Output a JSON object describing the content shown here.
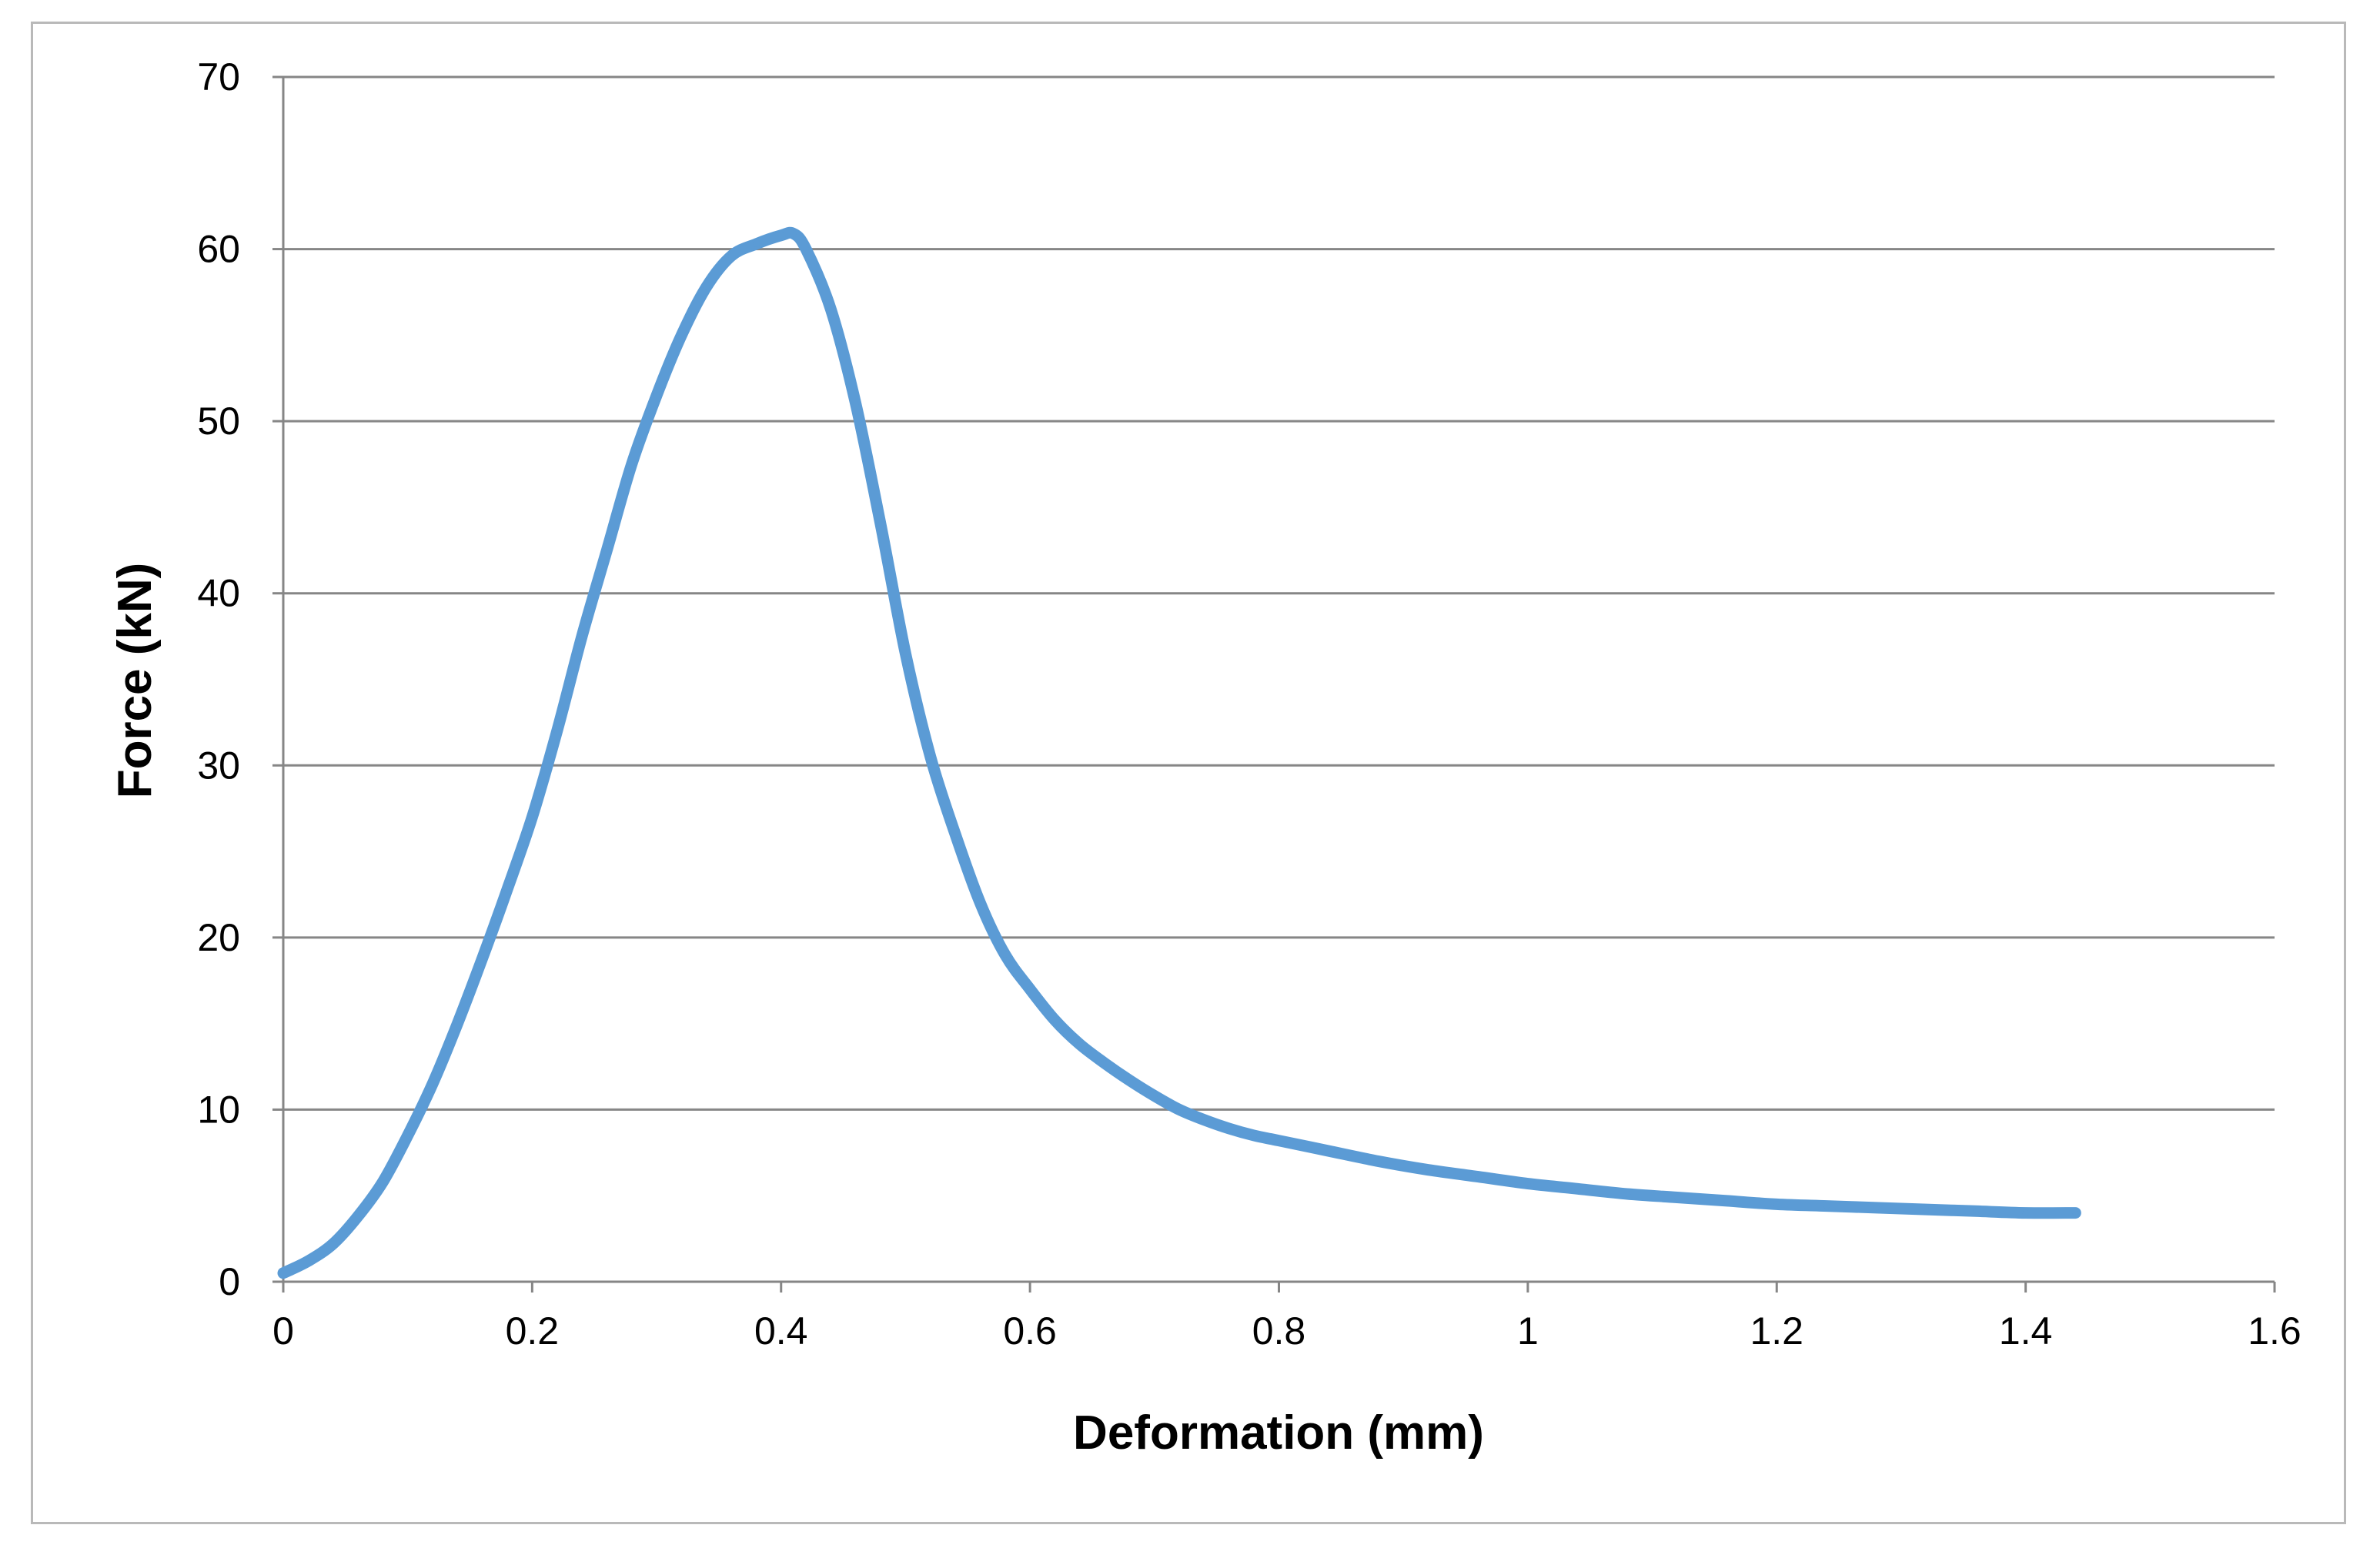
{
  "chart_data": {
    "type": "line",
    "title": "",
    "xlabel": "Deformation (mm)",
    "ylabel": "Force  (kN)",
    "xlim": [
      0,
      1.6
    ],
    "ylim": [
      0,
      70
    ],
    "x_ticks": [
      "0",
      "0.2",
      "0.4",
      "0.6",
      "0.8",
      "1",
      "1.2",
      "1.4",
      "1.6"
    ],
    "y_ticks": [
      "0",
      "10",
      "20",
      "30",
      "40",
      "50",
      "60",
      "70"
    ],
    "grid": "horizontal",
    "legend": "none",
    "series": [
      {
        "color": "#5b9bd5",
        "x": [
          0,
          0.02,
          0.04,
          0.06,
          0.08,
          0.1,
          0.12,
          0.14,
          0.16,
          0.18,
          0.2,
          0.22,
          0.24,
          0.26,
          0.28,
          0.3,
          0.32,
          0.34,
          0.36,
          0.38,
          0.4,
          0.41,
          0.42,
          0.44,
          0.46,
          0.48,
          0.5,
          0.52,
          0.54,
          0.56,
          0.58,
          0.6,
          0.62,
          0.64,
          0.66,
          0.68,
          0.7,
          0.72,
          0.74,
          0.76,
          0.78,
          0.8,
          0.84,
          0.88,
          0.92,
          0.96,
          1.0,
          1.04,
          1.08,
          1.12,
          1.16,
          1.2,
          1.24,
          1.28,
          1.32,
          1.36,
          1.4,
          1.44
        ],
        "y": [
          0.5,
          1.2,
          2.2,
          3.8,
          5.8,
          8.5,
          11.5,
          15.0,
          18.8,
          22.8,
          27.0,
          32.0,
          37.5,
          42.5,
          47.5,
          51.5,
          55.0,
          57.8,
          59.6,
          60.3,
          60.8,
          60.9,
          60.0,
          56.5,
          51.0,
          44.0,
          36.5,
          30.5,
          26.0,
          22.0,
          19.0,
          17.0,
          15.2,
          13.8,
          12.7,
          11.7,
          10.8,
          10.0,
          9.4,
          8.9,
          8.5,
          8.2,
          7.6,
          7.0,
          6.5,
          6.1,
          5.7,
          5.4,
          5.1,
          4.9,
          4.7,
          4.5,
          4.4,
          4.3,
          4.2,
          4.1,
          4.0,
          4.0
        ]
      }
    ]
  }
}
